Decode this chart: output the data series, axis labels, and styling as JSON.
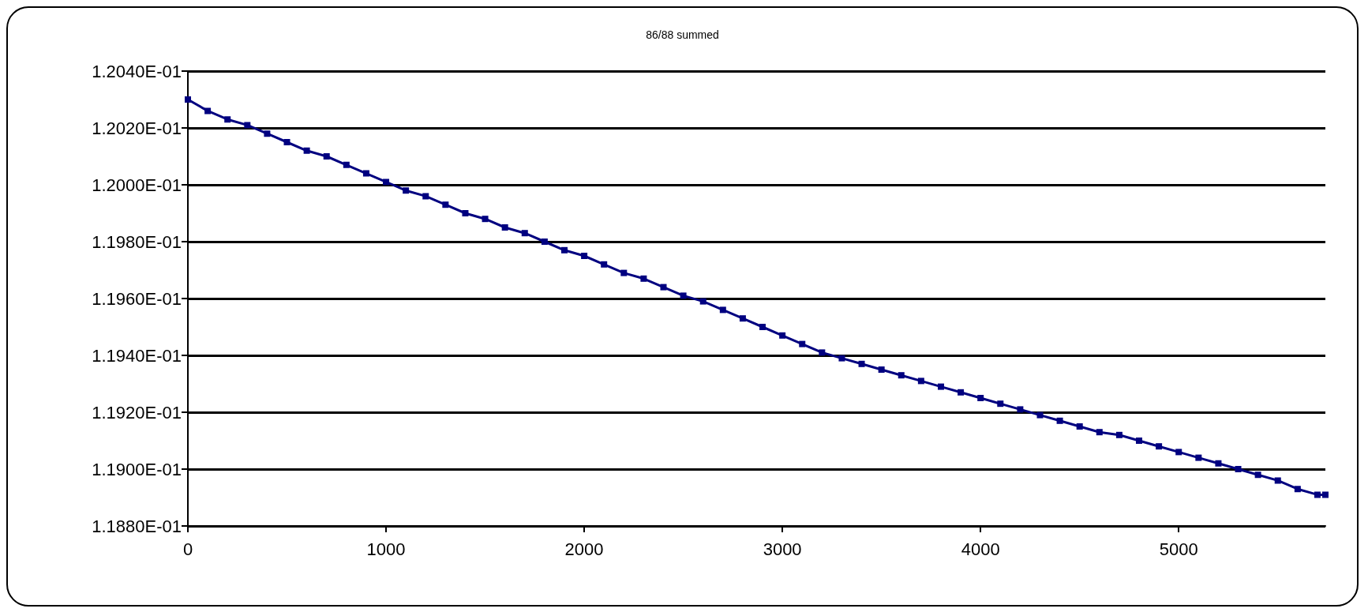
{
  "chart_data": {
    "type": "line",
    "title": "86/88 summed",
    "x": [
      0,
      100,
      200,
      300,
      400,
      500,
      600,
      700,
      800,
      900,
      1000,
      1100,
      1200,
      1300,
      1400,
      1500,
      1600,
      1700,
      1800,
      1900,
      2000,
      2100,
      2200,
      2300,
      2400,
      2500,
      2600,
      2700,
      2800,
      2900,
      3000,
      3100,
      3200,
      3300,
      3400,
      3500,
      3600,
      3700,
      3800,
      3900,
      4000,
      4100,
      4200,
      4300,
      4400,
      4500,
      4600,
      4700,
      4800,
      4900,
      5000,
      5100,
      5200,
      5300,
      5400,
      5500,
      5600,
      5700,
      5740
    ],
    "series": [
      {
        "color": "#000080",
        "values": [
          0.1203,
          0.12026,
          0.12023,
          0.12021,
          0.12018,
          0.12015,
          0.12012,
          0.1201,
          0.12007,
          0.12004,
          0.12001,
          0.11998,
          0.11996,
          0.11993,
          0.1199,
          0.11988,
          0.11985,
          0.11983,
          0.1198,
          0.11977,
          0.11975,
          0.11972,
          0.11969,
          0.11967,
          0.11964,
          0.11961,
          0.11959,
          0.11956,
          0.11953,
          0.1195,
          0.11947,
          0.11944,
          0.11941,
          0.11939,
          0.11937,
          0.11935,
          0.11933,
          0.11931,
          0.11929,
          0.11927,
          0.11925,
          0.11923,
          0.11921,
          0.11919,
          0.11917,
          0.11915,
          0.11913,
          0.11912,
          0.1191,
          0.11908,
          0.11906,
          0.11904,
          0.11902,
          0.119,
          0.11898,
          0.11896,
          0.11893,
          0.11891,
          0.11891
        ]
      }
    ],
    "xlim": [
      0,
      5740
    ],
    "xticks": [
      0,
      1000,
      2000,
      3000,
      4000,
      5000
    ],
    "ylim": [
      0.1188,
      0.1204
    ],
    "yticks": [
      {
        "value": 0.1188,
        "label": "1.1880E-01"
      },
      {
        "value": 0.119,
        "label": "1.1900E-01"
      },
      {
        "value": 0.1192,
        "label": "1.1920E-01"
      },
      {
        "value": 0.1194,
        "label": "1.1940E-01"
      },
      {
        "value": 0.1196,
        "label": "1.1960E-01"
      },
      {
        "value": 0.1198,
        "label": "1.1980E-01"
      },
      {
        "value": 0.12,
        "label": "1.2000E-01"
      },
      {
        "value": 0.1202,
        "label": "1.2020E-01"
      },
      {
        "value": 0.1204,
        "label": "1.2040E-01"
      }
    ],
    "grid": "y",
    "marker": "square",
    "line_style": "solid"
  }
}
